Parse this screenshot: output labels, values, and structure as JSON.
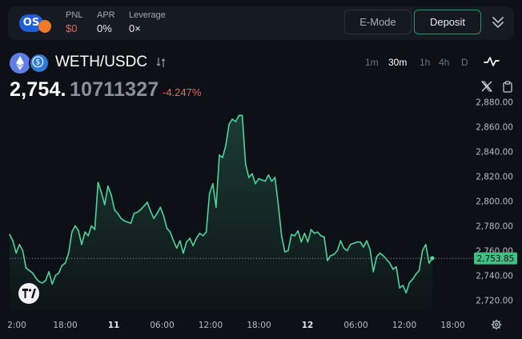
{
  "header": {
    "logo_text": "OS",
    "stats": [
      {
        "label": "PNL",
        "value": "$0",
        "tone": "red"
      },
      {
        "label": "APR",
        "value": "0%",
        "tone": "normal"
      },
      {
        "label": "Leverage",
        "value": "0×",
        "tone": "normal"
      }
    ],
    "emode_label": "E-Mode",
    "deposit_label": "Deposit"
  },
  "pair": {
    "name": "WETH/USDC",
    "timeframes": [
      "1m",
      "30m",
      "1h",
      "4h",
      "D"
    ],
    "active_timeframe": "30m"
  },
  "price": {
    "integer_part": "2,754.",
    "decimal_part": "10711327",
    "change": "-4.247%"
  },
  "colors": {
    "line": "#4fd59a",
    "change_red": "#e26b5a",
    "current_price_bg": "#3fbf83"
  },
  "chart_data": {
    "type": "area",
    "y_ticks": [
      "2,880.00",
      "2,860.00",
      "2,840.00",
      "2,820.00",
      "2,800.00",
      "2,780.00",
      "2,760.00",
      "2,740.00",
      "2,720.00"
    ],
    "y_tick_values": [
      2880,
      2860,
      2840,
      2820,
      2800,
      2780,
      2760,
      2740,
      2720
    ],
    "ylim": [
      2712,
      2886
    ],
    "x_ticks": [
      {
        "label": "2:00",
        "bold": false
      },
      {
        "label": "18:00",
        "bold": false
      },
      {
        "label": "11",
        "bold": true
      },
      {
        "label": "06:00",
        "bold": false
      },
      {
        "label": "12:00",
        "bold": false
      },
      {
        "label": "18:00",
        "bold": false
      },
      {
        "label": "12",
        "bold": true
      },
      {
        "label": "06:00",
        "bold": false
      },
      {
        "label": "12:00",
        "bold": false
      },
      {
        "label": "18:00",
        "bold": false
      }
    ],
    "current_price": 2753.85,
    "current_price_label": "2,753.85",
    "series": [
      {
        "values": [
          2773,
          2768,
          2758,
          2765,
          2760,
          2746,
          2744,
          2742,
          2738,
          2735,
          2734,
          2736,
          2743,
          2733,
          2740,
          2742,
          2748,
          2750,
          2758,
          2775,
          2780,
          2776,
          2765,
          2775,
          2772,
          2780,
          2777,
          2815,
          2807,
          2797,
          2812,
          2805,
          2793,
          2790,
          2786,
          2784,
          2783,
          2782,
          2790,
          2791,
          2793,
          2796,
          2799,
          2792,
          2786,
          2790,
          2795,
          2788,
          2778,
          2775,
          2768,
          2762,
          2768,
          2758,
          2767,
          2770,
          2764,
          2770,
          2774,
          2772,
          2775,
          2806,
          2814,
          2795,
          2837,
          2835,
          2845,
          2862,
          2866,
          2864,
          2869,
          2869,
          2830,
          2819,
          2822,
          2814,
          2818,
          2817,
          2816,
          2821,
          2816,
          2819,
          2797,
          2772,
          2759,
          2760,
          2773,
          2772,
          2776,
          2767,
          2774,
          2767,
          2777,
          2774,
          2775,
          2772,
          2771,
          2752,
          2756,
          2757,
          2760,
          2768,
          2762,
          2760,
          2765,
          2766,
          2767,
          2767,
          2763,
          2768,
          2761,
          2743,
          2755,
          2758,
          2756,
          2753,
          2750,
          2745,
          2747,
          2730,
          2732,
          2726,
          2734,
          2737,
          2741,
          2744,
          2760,
          2765,
          2750,
          2754
        ]
      }
    ],
    "grid": false,
    "legend": "none"
  }
}
